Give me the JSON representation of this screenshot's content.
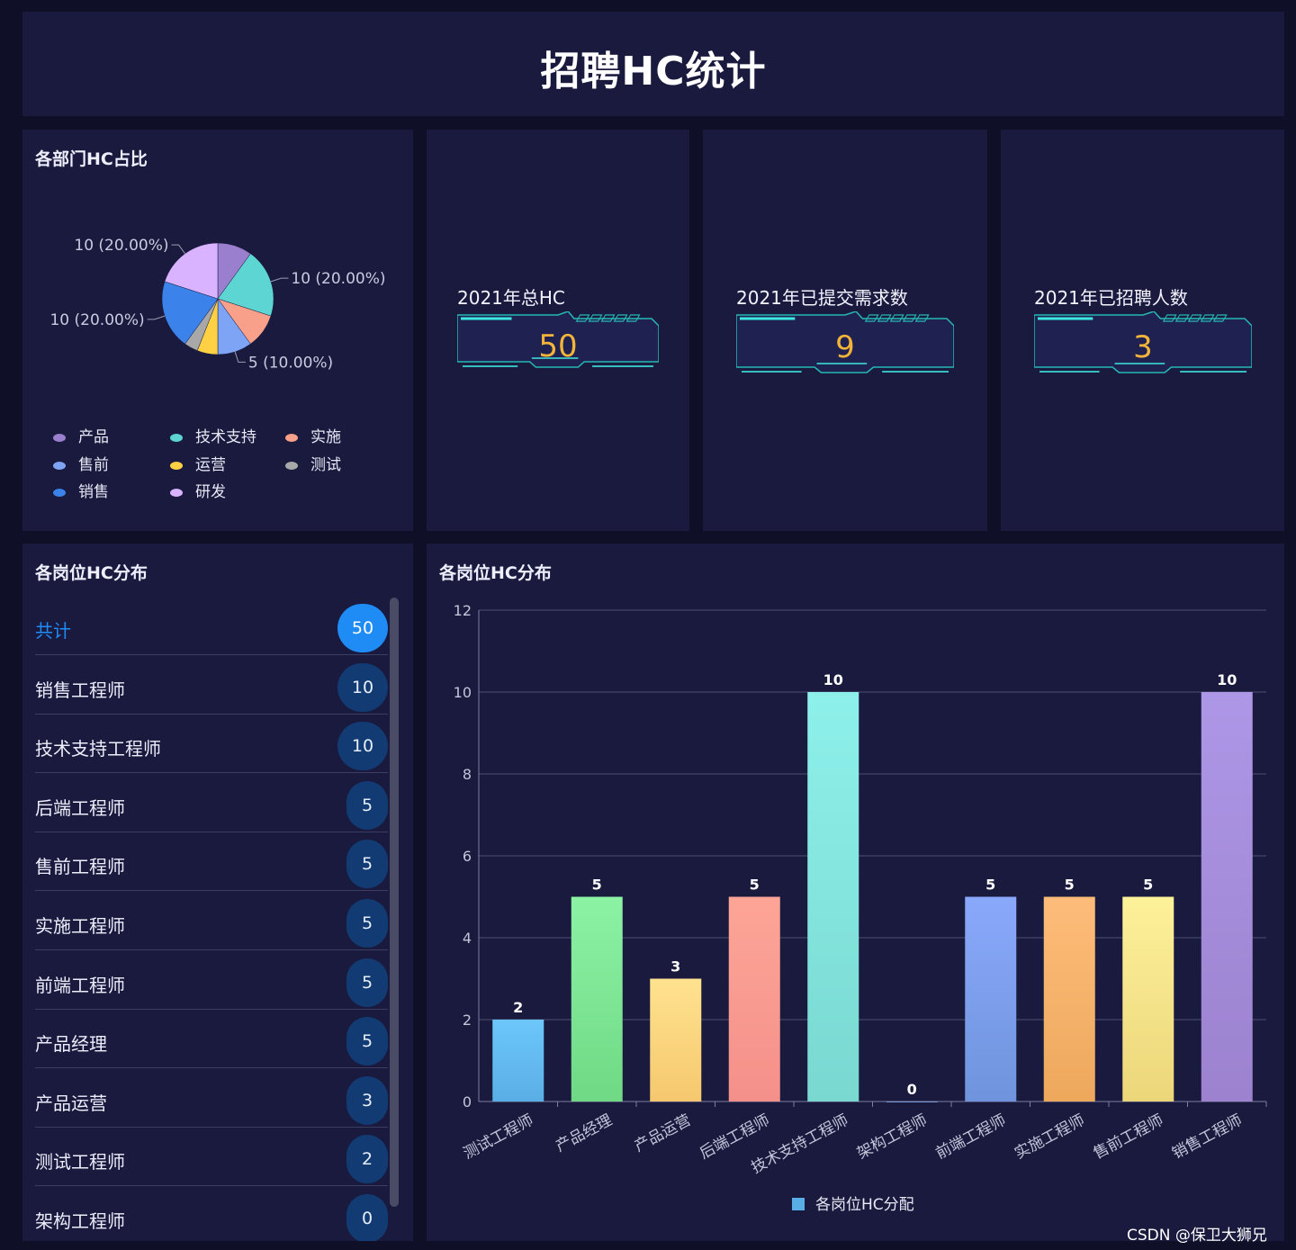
{
  "header": {
    "title": "招聘HC统计"
  },
  "pie_panel": {
    "title": "各部门HC占比"
  },
  "stats": [
    {
      "label": "2021年总HC",
      "value": "50"
    },
    {
      "label": "2021年已提交需求数",
      "value": "9"
    },
    {
      "label": "2021年已招聘人数",
      "value": "3"
    }
  ],
  "list_panel": {
    "title": "各岗位HC分布",
    "rows": [
      {
        "name": "共计",
        "count": "50"
      },
      {
        "name": "销售工程师",
        "count": "10"
      },
      {
        "name": "技术支持工程师",
        "count": "10"
      },
      {
        "name": "后端工程师",
        "count": "5"
      },
      {
        "name": "售前工程师",
        "count": "5"
      },
      {
        "name": "实施工程师",
        "count": "5"
      },
      {
        "name": "前端工程师",
        "count": "5"
      },
      {
        "name": "产品经理",
        "count": "5"
      },
      {
        "name": "产品运营",
        "count": "3"
      },
      {
        "name": "测试工程师",
        "count": "2"
      },
      {
        "name": "架构工程师",
        "count": "0"
      }
    ]
  },
  "bar_panel": {
    "title": "各岗位HC分布"
  },
  "watermark": "CSDN @保卫大狮兄",
  "chart_data": [
    {
      "type": "pie",
      "title": "各部门HC占比",
      "legend": [
        "产品",
        "技术支持",
        "实施",
        "售前",
        "运营",
        "测试",
        "销售",
        "研发"
      ],
      "slices": [
        {
          "name": "产品",
          "value": 5,
          "color": "#9b7fcf"
        },
        {
          "name": "技术支持",
          "value": 10,
          "color": "#5dd6d3"
        },
        {
          "name": "实施",
          "value": 5,
          "color": "#f9a08a"
        },
        {
          "name": "售前",
          "value": 5,
          "color": "#7ea4f5"
        },
        {
          "name": "运营",
          "value": 3,
          "color": "#fdd143"
        },
        {
          "name": "测试",
          "value": 2,
          "color": "#a8a8a8"
        },
        {
          "name": "销售",
          "value": 10,
          "color": "#3b82ea"
        },
        {
          "name": "研发",
          "value": 10,
          "color": "#d9b3ff"
        }
      ],
      "shown_labels": [
        {
          "slice": "研发",
          "text": "10 (20.00%)",
          "side": "left"
        },
        {
          "slice": "技术支持",
          "text": "10 (20.00%)",
          "side": "right"
        },
        {
          "slice": "销售",
          "text": "10 (20.00%)",
          "side": "left"
        },
        {
          "slice": "售前",
          "text": "5 (10.00%)",
          "side": "right"
        }
      ],
      "legend_placement": "bottom"
    },
    {
      "type": "bar",
      "title": "各岗位HC分布",
      "categories": [
        "测试工程师",
        "产品经理",
        "产品运营",
        "后端工程师",
        "技术支持工程师",
        "架构工程师",
        "前端工程师",
        "实施工程师",
        "售前工程师",
        "销售工程师"
      ],
      "series": [
        {
          "name": "各岗位HC分配",
          "values": [
            2,
            5,
            3,
            5,
            10,
            0,
            5,
            5,
            5,
            10
          ]
        }
      ],
      "bar_colors": [
        [
          "#6cc7fb",
          "#5aaee6"
        ],
        [
          "#8cf2a4",
          "#6fd985"
        ],
        [
          "#ffe28f",
          "#f5c86e"
        ],
        [
          "#fda597",
          "#f4908a"
        ],
        [
          "#8ef0ea",
          "#79d9d1"
        ],
        [
          "#8bb1f5",
          "#8bb1f5"
        ],
        [
          "#8aa8fb",
          "#6f94dc"
        ],
        [
          "#fdbc7a",
          "#eda85c"
        ],
        [
          "#fdf19a",
          "#ecd67a"
        ],
        [
          "#ad97e6",
          "#9c82cf"
        ]
      ],
      "ylim": [
        0,
        12
      ],
      "yticks": [
        0,
        2,
        4,
        6,
        8,
        10,
        12
      ],
      "grid": true,
      "legend_placement": "bottom-center",
      "legend_color": "#5aaee6"
    }
  ]
}
